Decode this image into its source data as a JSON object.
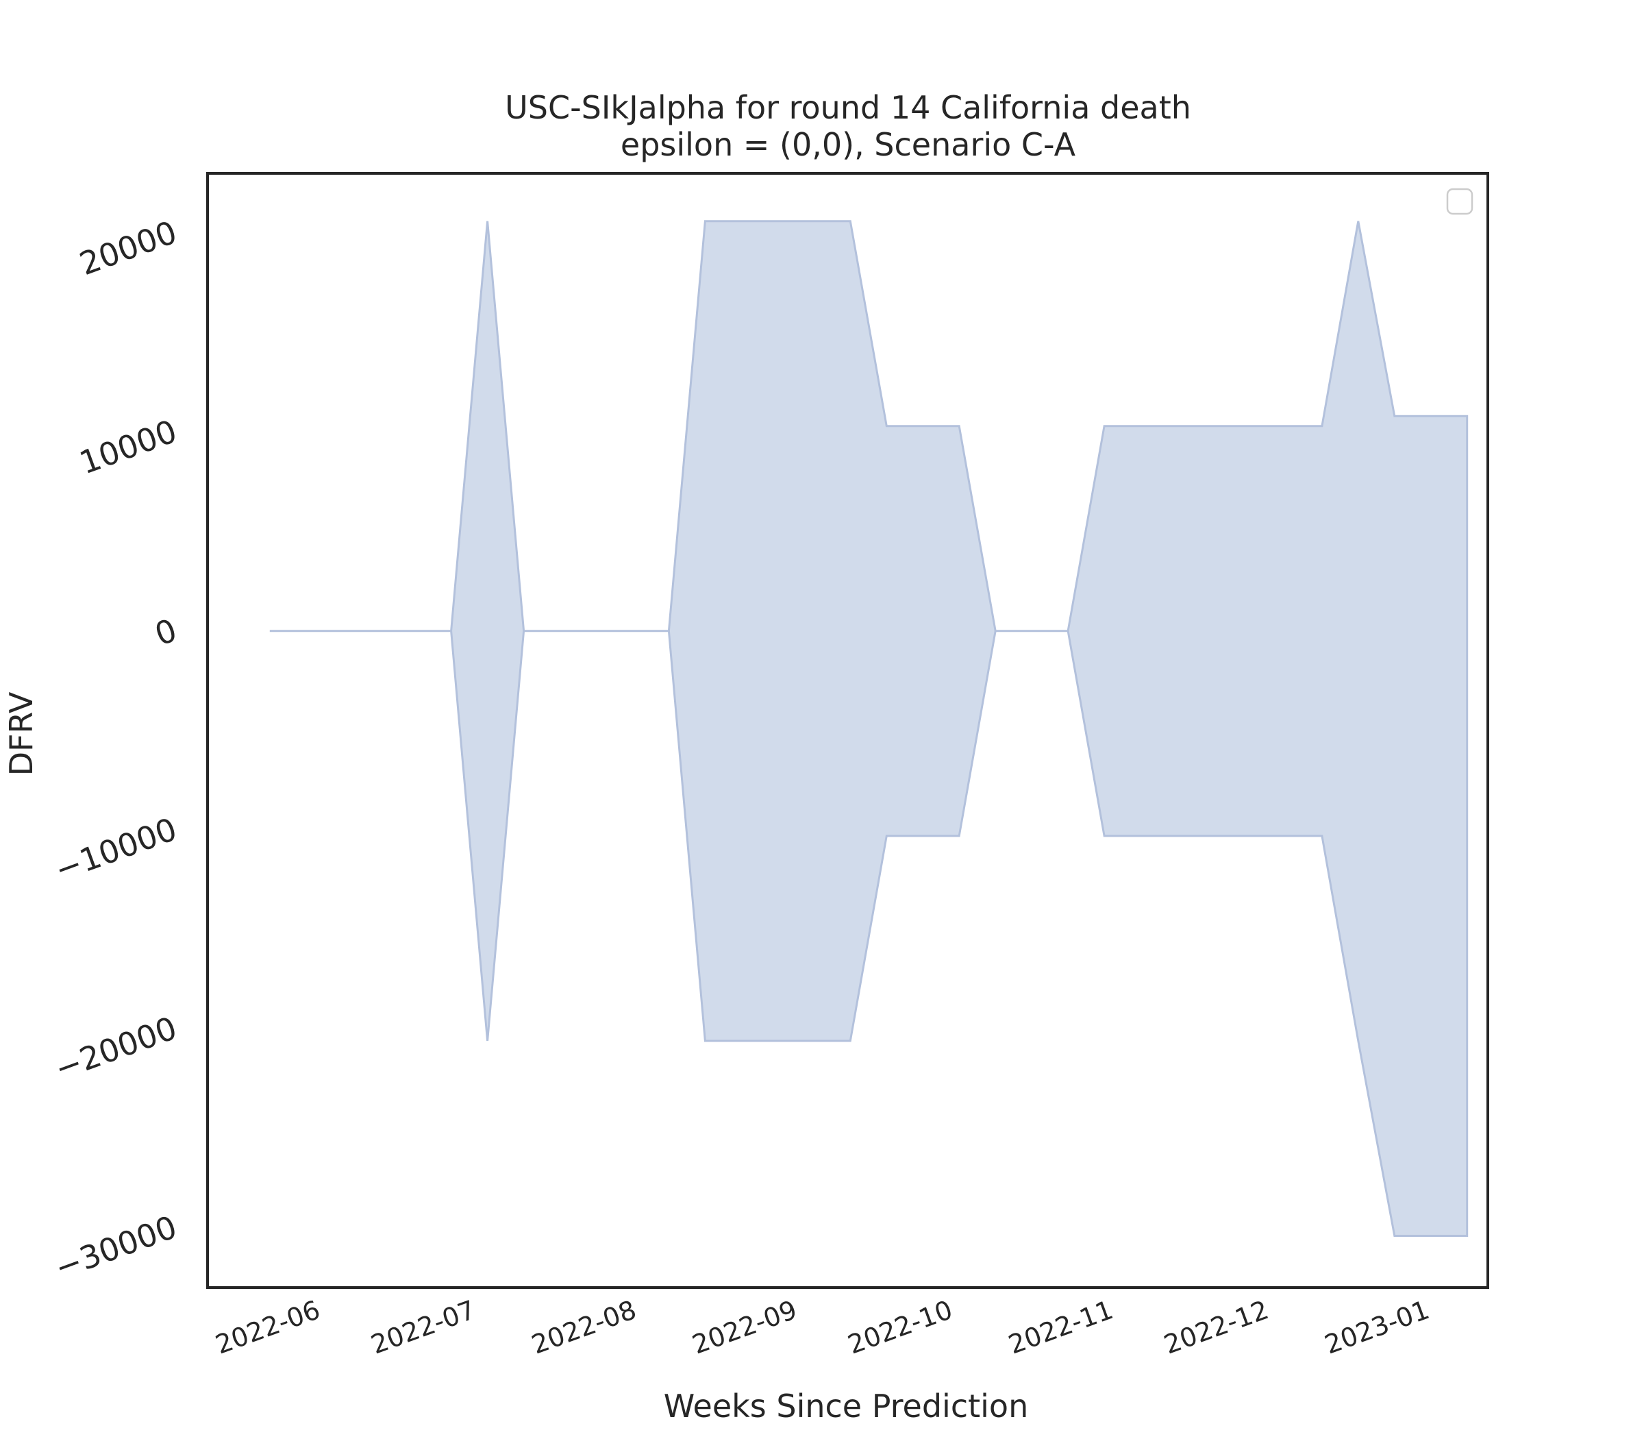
{
  "chart_data": {
    "type": "area",
    "title_line1": "USC-SIkJalpha for round 14 California death",
    "title_line2": "epsilon = (0,0), Scenario C-A",
    "xlabel": "Weeks Since Prediction",
    "ylabel": "DFRV",
    "x_tick_labels": [
      "2022-06",
      "2022-07",
      "2022-08",
      "2022-09",
      "2022-10",
      "2022-11",
      "2022-12",
      "2023-01"
    ],
    "x_tick_dates": [
      "2022-06-01",
      "2022-07-01",
      "2022-08-01",
      "2022-09-01",
      "2022-10-01",
      "2022-11-01",
      "2022-12-01",
      "2023-01-01"
    ],
    "y_ticks": [
      20000,
      10000,
      0,
      -10000,
      -20000,
      -30000
    ],
    "y_tick_labels": [
      "20000",
      "10000",
      "0",
      "−10000",
      "−20000",
      "−30000"
    ],
    "xlim": [
      "2022-05-11",
      "2023-01-13"
    ],
    "ylim": [
      -33000,
      23000
    ],
    "grid": false,
    "legend": "top-right (empty)",
    "fill_color": "#d1dbeb",
    "edge_color": "#b3c1dc",
    "band": {
      "x": [
        "2022-05-23",
        "2022-06-27",
        "2022-07-04",
        "2022-07-11",
        "2022-08-08",
        "2022-08-15",
        "2022-09-12",
        "2022-09-19",
        "2022-10-03",
        "2022-10-10",
        "2022-10-24",
        "2022-10-31",
        "2022-11-07",
        "2022-12-12",
        "2022-12-19",
        "2022-12-26",
        "2023-01-02",
        "2023-01-09"
      ],
      "upper": [
        0,
        0,
        20600,
        0,
        0,
        20600,
        20600,
        10300,
        10300,
        0,
        0,
        10300,
        10300,
        10300,
        20600,
        10800,
        10800,
        10800
      ],
      "lower": [
        0,
        0,
        -20600,
        0,
        0,
        -20600,
        -20600,
        -10300,
        -10300,
        0,
        0,
        -10300,
        -10300,
        -10300,
        -20600,
        -30400,
        -30400,
        -30400
      ]
    }
  }
}
